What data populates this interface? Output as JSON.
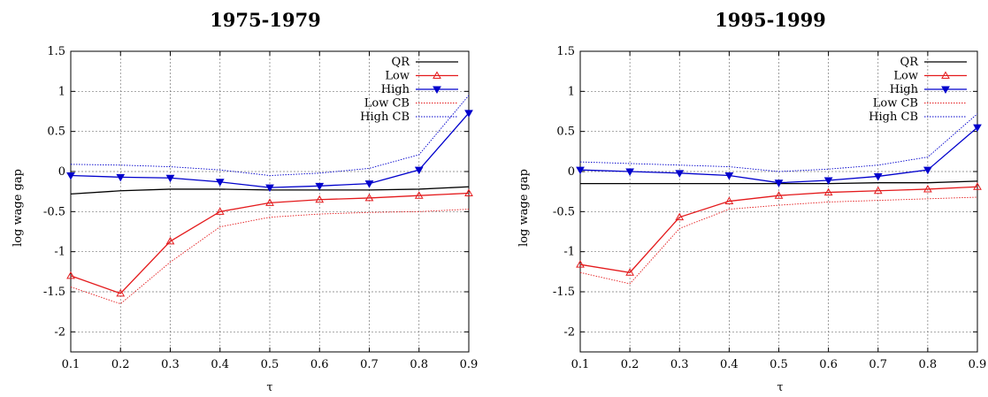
{
  "chart_data": [
    {
      "type": "line",
      "title": "1975-1979",
      "xlabel": "τ",
      "ylabel": "log wage gap",
      "xlim": [
        0.1,
        0.9
      ],
      "ylim": [
        -2.25,
        1.5
      ],
      "xticks": [
        "0.1",
        "0.2",
        "0.3",
        "0.4",
        "0.5",
        "0.6",
        "0.7",
        "0.8",
        "0.9"
      ],
      "yticks": [
        "1.5",
        "1",
        "0.5",
        "0",
        "-0.5",
        "-1",
        "-1.5",
        "-2"
      ],
      "grid": true,
      "legend": "top-right",
      "x": [
        0.1,
        0.2,
        0.3,
        0.4,
        0.5,
        0.6,
        0.7,
        0.8,
        0.9
      ],
      "series": [
        {
          "name": "QR",
          "color": "#000000",
          "style": "solid",
          "marker": "none",
          "values": [
            -0.28,
            -0.24,
            -0.22,
            -0.22,
            -0.23,
            -0.23,
            -0.23,
            -0.22,
            -0.19
          ]
        },
        {
          "name": "Low",
          "color": "#e41a1c",
          "style": "solid",
          "marker": "triangle-up",
          "values": [
            -1.3,
            -1.52,
            -0.87,
            -0.5,
            -0.39,
            -0.35,
            -0.33,
            -0.3,
            -0.27
          ]
        },
        {
          "name": "High",
          "color": "#0000cc",
          "style": "solid",
          "marker": "triangle-down",
          "values": [
            -0.05,
            -0.07,
            -0.08,
            -0.13,
            -0.2,
            -0.18,
            -0.15,
            0.02,
            0.73
          ]
        },
        {
          "name": "Low CB",
          "color": "#e41a1c",
          "style": "dotted",
          "marker": "none",
          "values": [
            -1.44,
            -1.65,
            -1.13,
            -0.69,
            -0.57,
            -0.53,
            -0.51,
            -0.5,
            -0.47
          ]
        },
        {
          "name": "High CB",
          "color": "#0000cc",
          "style": "dotted",
          "marker": "none",
          "values": [
            0.09,
            0.08,
            0.06,
            0.02,
            -0.05,
            -0.02,
            0.04,
            0.21,
            0.95
          ]
        }
      ]
    },
    {
      "type": "line",
      "title": "1995-1999",
      "xlabel": "τ",
      "ylabel": "log wage gap",
      "xlim": [
        0.1,
        0.9
      ],
      "ylim": [
        -2.25,
        1.5
      ],
      "xticks": [
        "0.1",
        "0.2",
        "0.3",
        "0.4",
        "0.5",
        "0.6",
        "0.7",
        "0.8",
        "0.9"
      ],
      "yticks": [
        "1.5",
        "1",
        "0.5",
        "0",
        "-0.5",
        "-1",
        "-1.5",
        "-2"
      ],
      "grid": true,
      "legend": "top-right",
      "x": [
        0.1,
        0.2,
        0.3,
        0.4,
        0.5,
        0.6,
        0.7,
        0.8,
        0.9
      ],
      "series": [
        {
          "name": "QR",
          "color": "#000000",
          "style": "solid",
          "marker": "none",
          "values": [
            -0.15,
            -0.15,
            -0.15,
            -0.15,
            -0.15,
            -0.15,
            -0.14,
            -0.14,
            -0.12
          ]
        },
        {
          "name": "Low",
          "color": "#e41a1c",
          "style": "solid",
          "marker": "triangle-up",
          "values": [
            -1.16,
            -1.26,
            -0.57,
            -0.37,
            -0.3,
            -0.26,
            -0.24,
            -0.22,
            -0.19
          ]
        },
        {
          "name": "High",
          "color": "#0000cc",
          "style": "solid",
          "marker": "triangle-down",
          "values": [
            0.02,
            0.0,
            -0.02,
            -0.05,
            -0.14,
            -0.11,
            -0.06,
            0.02,
            0.55
          ]
        },
        {
          "name": "Low CB",
          "color": "#e41a1c",
          "style": "dotted",
          "marker": "none",
          "values": [
            -1.26,
            -1.4,
            -0.71,
            -0.47,
            -0.42,
            -0.38,
            -0.36,
            -0.34,
            -0.32
          ]
        },
        {
          "name": "High CB",
          "color": "#0000cc",
          "style": "dotted",
          "marker": "none",
          "values": [
            0.12,
            0.1,
            0.08,
            0.06,
            0.0,
            0.03,
            0.08,
            0.18,
            0.72
          ]
        }
      ]
    }
  ]
}
